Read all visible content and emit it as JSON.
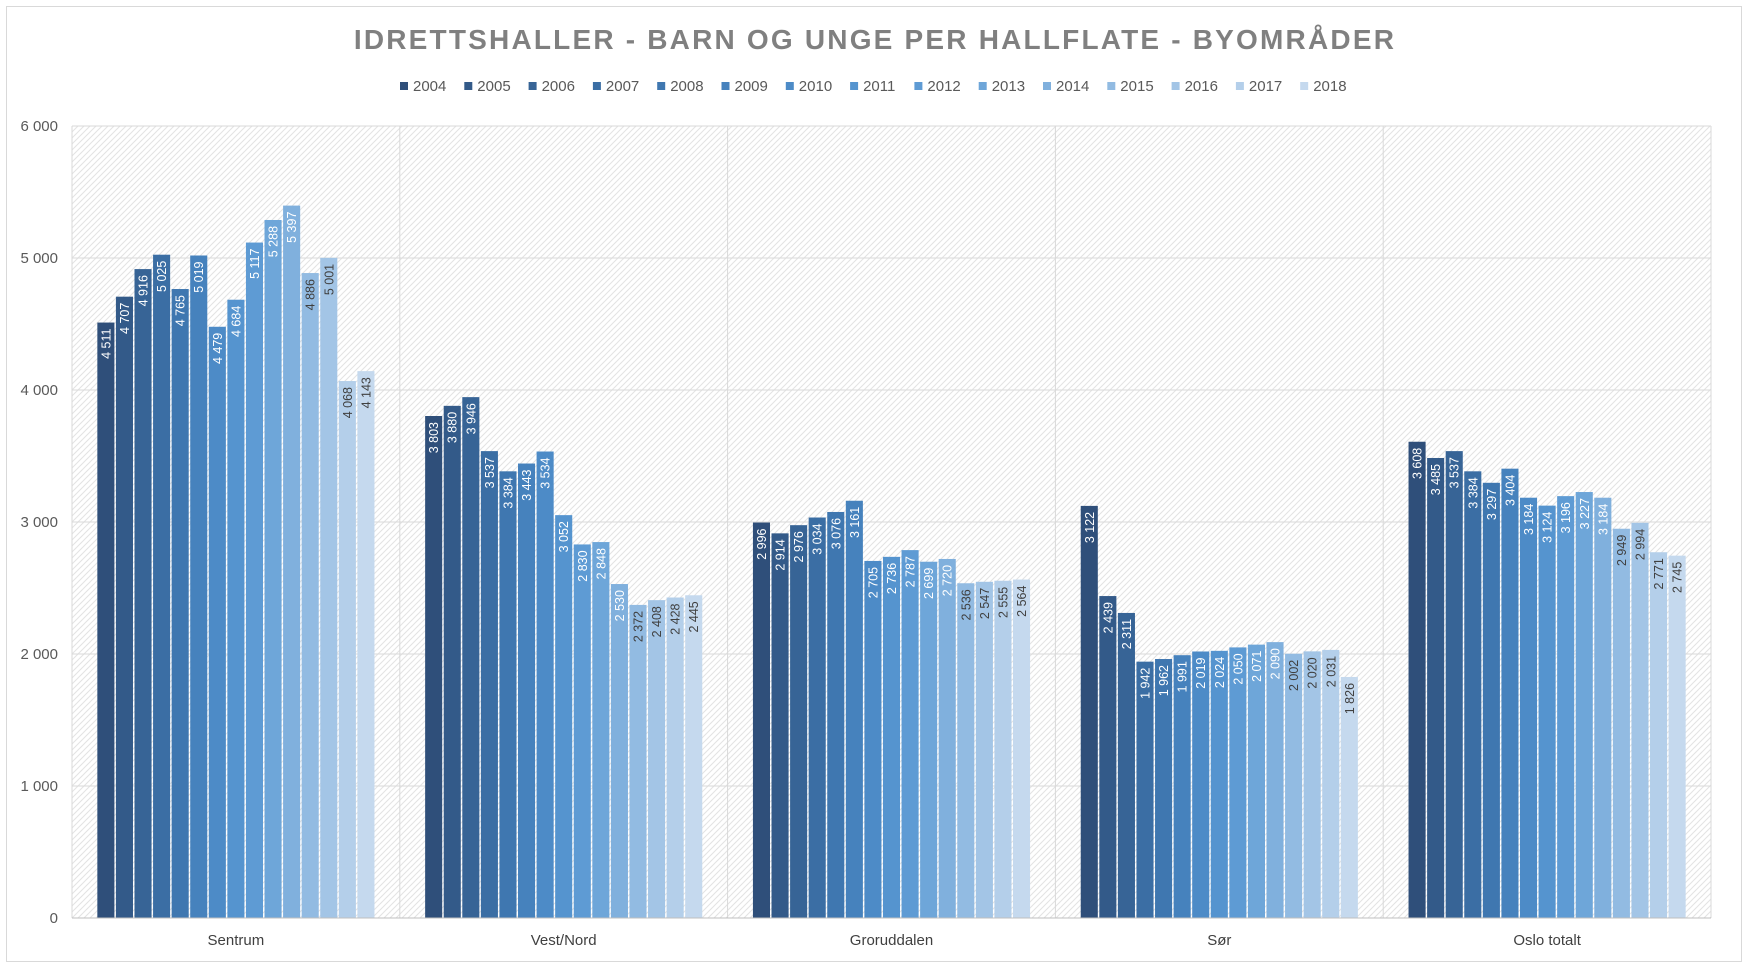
{
  "chart_data": {
    "type": "bar",
    "title": "IDRETTSHALLER - BARN OG UNGE PER HALLFLATE - BYOMRÅDER",
    "categories": [
      "Sentrum",
      "Vest/Nord",
      "Groruddalen",
      "Sør",
      "Oslo totalt"
    ],
    "series": [
      {
        "name": "2004",
        "color": "#2f4f7a",
        "values": [
          4511,
          3803,
          2996,
          3122,
          3608
        ],
        "labels": [
          "4 511",
          "3 803",
          "2 996",
          "3 122",
          "3 608"
        ]
      },
      {
        "name": "2005",
        "color": "#335a89",
        "values": [
          4707,
          3880,
          2914,
          2439,
          3485
        ],
        "labels": [
          "4 707",
          "3 880",
          "2 914",
          "2 439",
          "3 485"
        ]
      },
      {
        "name": "2006",
        "color": "#376496",
        "values": [
          4916,
          3946,
          2976,
          2311,
          3537
        ],
        "labels": [
          "4 916",
          "3 946",
          "2 976",
          "2 311",
          "3 537"
        ]
      },
      {
        "name": "2007",
        "color": "#3b6ea4",
        "values": [
          5025,
          3537,
          3034,
          1942,
          3384
        ],
        "labels": [
          "5 025",
          "3 537",
          "3 034",
          "1 942",
          "3 384"
        ]
      },
      {
        "name": "2008",
        "color": "#3f77b0",
        "values": [
          4765,
          3384,
          3076,
          1962,
          3297
        ],
        "labels": [
          "4 765",
          "3 384",
          "3 076",
          "1 962",
          "3 297"
        ]
      },
      {
        "name": "2009",
        "color": "#4682bd",
        "values": [
          5019,
          3443,
          3161,
          1991,
          3404
        ],
        "labels": [
          "5 019",
          "3 443",
          "3 161",
          "1 991",
          "3 404"
        ]
      },
      {
        "name": "2010",
        "color": "#4d8bc7",
        "values": [
          4479,
          3534,
          2705,
          2019,
          3184
        ],
        "labels": [
          "4 479",
          "3 534",
          "2 705",
          "2 019",
          "3 184"
        ]
      },
      {
        "name": "2011",
        "color": "#5594cf",
        "values": [
          4684,
          3052,
          2736,
          2024,
          3124
        ],
        "labels": [
          "4 684",
          "3 052",
          "2 736",
          "2 024",
          "3 124"
        ]
      },
      {
        "name": "2012",
        "color": "#5e9bd4",
        "values": [
          5117,
          2830,
          2787,
          2050,
          3196
        ],
        "labels": [
          "5 117",
          "2 830",
          "2 787",
          "2 050",
          "3 196"
        ]
      },
      {
        "name": "2013",
        "color": "#6ea6d9",
        "values": [
          5288,
          2848,
          2699,
          2071,
          3227
        ],
        "labels": [
          "5 288",
          "2 848",
          "2 699",
          "2 071",
          "3 227"
        ]
      },
      {
        "name": "2014",
        "color": "#80b0dd",
        "values": [
          5397,
          2530,
          2720,
          2090,
          3184
        ],
        "labels": [
          "5 397",
          "2 530",
          "2 720",
          "2 090",
          "3 184"
        ]
      },
      {
        "name": "2015",
        "color": "#92bbe2",
        "values": [
          4886,
          2372,
          2536,
          2002,
          2949
        ],
        "labels": [
          "4 886",
          "2 372",
          "2 536",
          "2 002",
          "2 949"
        ]
      },
      {
        "name": "2016",
        "color": "#a3c5e6",
        "values": [
          5001,
          2408,
          2547,
          2020,
          2994
        ],
        "labels": [
          "5 001",
          "2 408",
          "2 547",
          "2 020",
          "2 994"
        ]
      },
      {
        "name": "2017",
        "color": "#b4cfea",
        "values": [
          4068,
          2428,
          2555,
          2031,
          2771
        ],
        "labels": [
          "4 068",
          "2 428",
          "2 555",
          "2 031",
          "2 771"
        ]
      },
      {
        "name": "2018",
        "color": "#c5d9ee",
        "values": [
          4143,
          2445,
          2564,
          1826,
          2745
        ],
        "labels": [
          "4 143",
          "2 445",
          "2 564",
          "1 826",
          "2 745"
        ]
      }
    ],
    "ylim": [
      0,
      6000
    ],
    "yticks": [
      0,
      1000,
      2000,
      3000,
      4000,
      5000,
      6000
    ],
    "ytick_labels": [
      "0",
      "1 000",
      "2 000",
      "3 000",
      "4 000",
      "5 000",
      "6 000"
    ],
    "grid": true,
    "legend_position": "top-center",
    "plot_background": "hatched light gray",
    "xlabel": "",
    "ylabel": ""
  }
}
